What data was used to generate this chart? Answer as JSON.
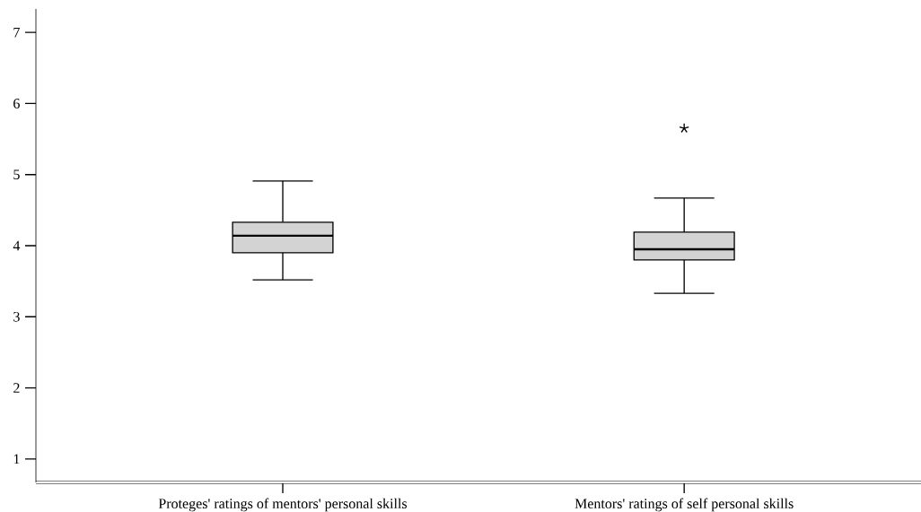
{
  "chart_data": {
    "type": "box",
    "categories": [
      "Proteges' ratings of mentors' personal skills",
      "Mentors' ratings of self personal skills"
    ],
    "boxes": [
      {
        "low": 3.52,
        "q1": 3.9,
        "median": 4.14,
        "q3": 4.33,
        "high": 4.91
      },
      {
        "low": 3.33,
        "q1": 3.8,
        "median": 3.95,
        "q3": 4.19,
        "high": 4.67,
        "outliers": [
          5.65
        ]
      }
    ],
    "color": "#d3d3d3",
    "marker": "star",
    "ylim": [
      0.67,
      7.33
    ],
    "yticks": [
      1,
      2,
      3,
      4,
      5,
      6,
      7
    ]
  }
}
